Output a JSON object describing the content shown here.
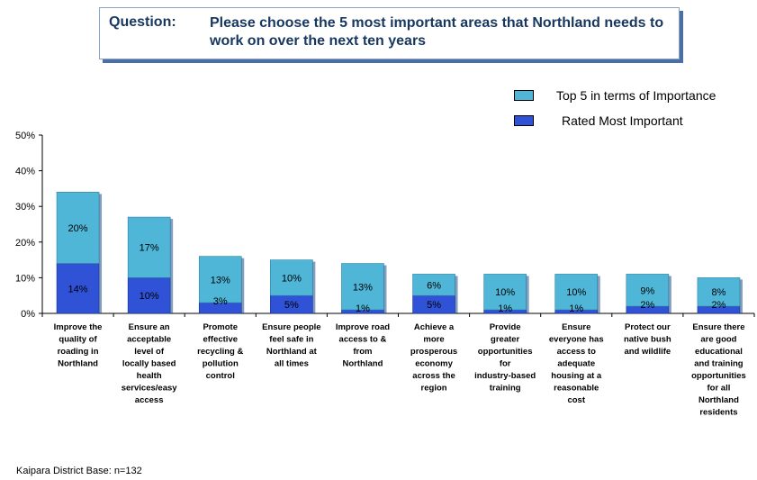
{
  "question": {
    "label": "Question:",
    "text": "Please choose the 5 most important areas that Northland needs to work on over the next ten years"
  },
  "legend": [
    {
      "label": "Top 5 in terms of Importance",
      "color": "#4fb6d8"
    },
    {
      "label": "Rated Most Important",
      "color": "#2f52d6"
    }
  ],
  "chart_data": {
    "type": "bar",
    "stacked": true,
    "ylim": [
      0,
      50
    ],
    "yticks": [
      "0%",
      "10%",
      "20%",
      "30%",
      "40%",
      "50%"
    ],
    "grid": false,
    "legend_position": "top-right",
    "categories": [
      "Improve the quality of roading in Northland",
      "Ensure an acceptable level of locally based health services/easy access",
      "Promote effective recycling & pollution control",
      "Ensure people feel safe in Northland at all times",
      "Improve road access to & from Northland",
      "Achieve a more prosperous economy across the region",
      "Provide greater opportunities for industry-based training",
      "Ensure everyone has access to adequate housing at a reasonable cost",
      "Protect our native bush and wildlife",
      "Ensure there are good educational and training opportunities for all Northland residents"
    ],
    "series": [
      {
        "name": "Rated Most Important",
        "color": "#2f52d6",
        "values": [
          14,
          10,
          3,
          5,
          1,
          5,
          1,
          1,
          2,
          2
        ],
        "labels": [
          "14%",
          "10%",
          "3%",
          "5%",
          "1%",
          "5%",
          "1%",
          "1%",
          "2%",
          "2%"
        ]
      },
      {
        "name": "Top 5 in terms of Importance",
        "color": "#4fb6d8",
        "values": [
          20,
          17,
          13,
          10,
          13,
          6,
          10,
          10,
          9,
          8
        ],
        "labels": [
          "20%",
          "17%",
          "13%",
          "10%",
          "13%",
          "6%",
          "10%",
          "10%",
          "9%",
          "8%"
        ]
      }
    ]
  },
  "footer": {
    "base_note": "Kaipara District Base:  n=132"
  }
}
